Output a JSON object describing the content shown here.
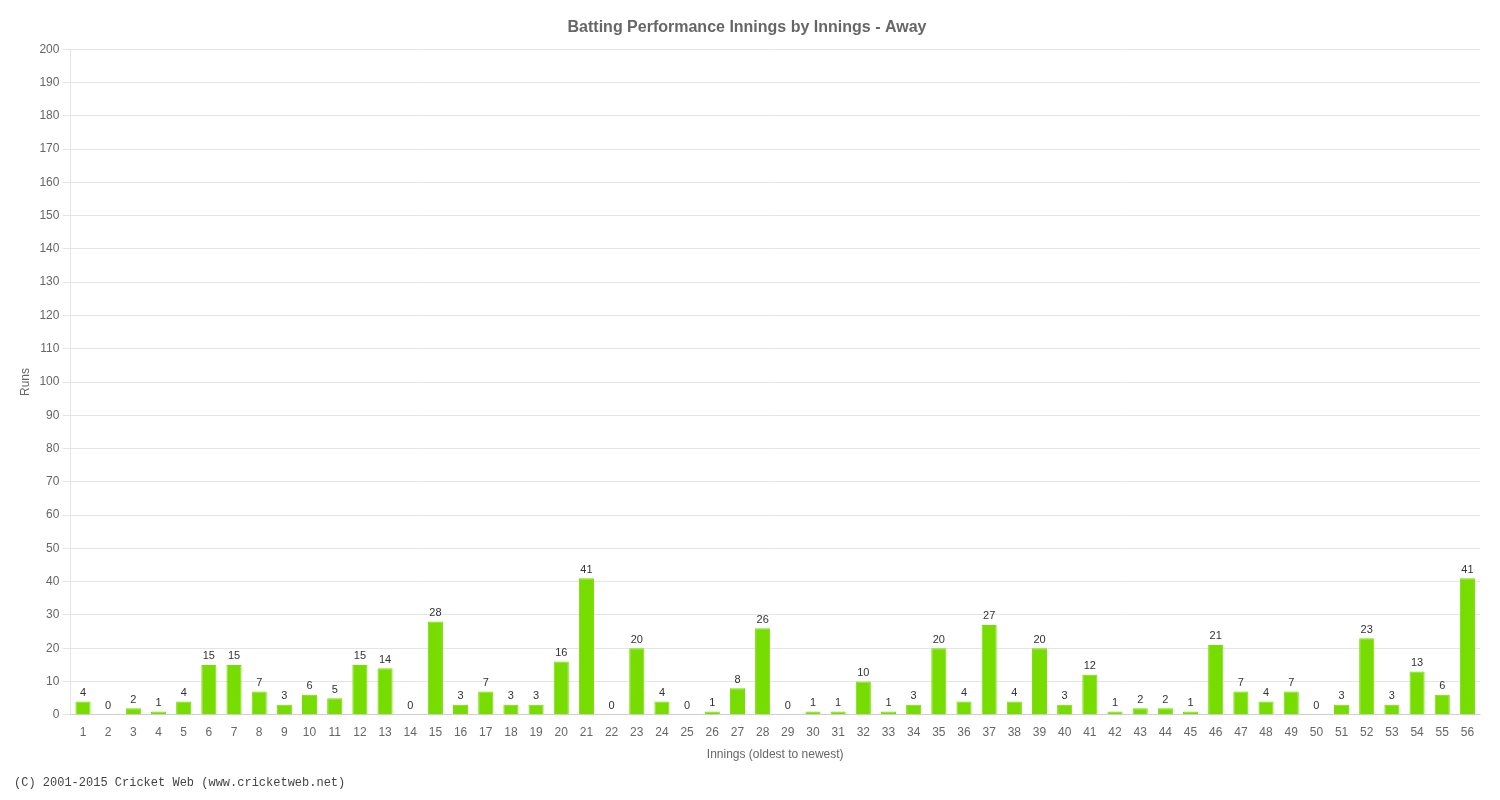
{
  "chart_data": {
    "type": "bar",
    "title": "Batting Performance Innings by Innings - Away",
    "x_label": "Innings (oldest to newest)",
    "y_label": "Runs",
    "categories": [
      "1",
      "2",
      "3",
      "4",
      "5",
      "6",
      "7",
      "8",
      "9",
      "10",
      "11",
      "12",
      "13",
      "14",
      "15",
      "16",
      "17",
      "18",
      "19",
      "20",
      "21",
      "22",
      "23",
      "24",
      "25",
      "26",
      "27",
      "28",
      "29",
      "30",
      "31",
      "32",
      "33",
      "34",
      "35",
      "36",
      "37",
      "38",
      "39",
      "40",
      "41",
      "42",
      "43",
      "44",
      "45",
      "46",
      "47",
      "48",
      "49",
      "50",
      "51",
      "52",
      "53",
      "54",
      "55",
      "56"
    ],
    "values": [
      4,
      0,
      2,
      1,
      4,
      15,
      15,
      7,
      3,
      6,
      5,
      15,
      14,
      0,
      28,
      3,
      7,
      3,
      3,
      16,
      41,
      0,
      20,
      4,
      0,
      1,
      8,
      26,
      0,
      1,
      1,
      10,
      1,
      3,
      20,
      4,
      27,
      4,
      20,
      3,
      12,
      1,
      2,
      2,
      1,
      21,
      7,
      4,
      7,
      0,
      3,
      23,
      3,
      13,
      6,
      41
    ],
    "color": "#77dd00",
    "ylim": [
      0,
      200
    ],
    "yticks": [
      0,
      10,
      20,
      30,
      40,
      50,
      60,
      70,
      80,
      90,
      100,
      110,
      120,
      130,
      140,
      150,
      160,
      170,
      180,
      190,
      200
    ],
    "grid": true,
    "data_labels": true,
    "annotations": [
      "(C) 2001-2015 Cricket Web (www.cricketweb.net)"
    ]
  }
}
